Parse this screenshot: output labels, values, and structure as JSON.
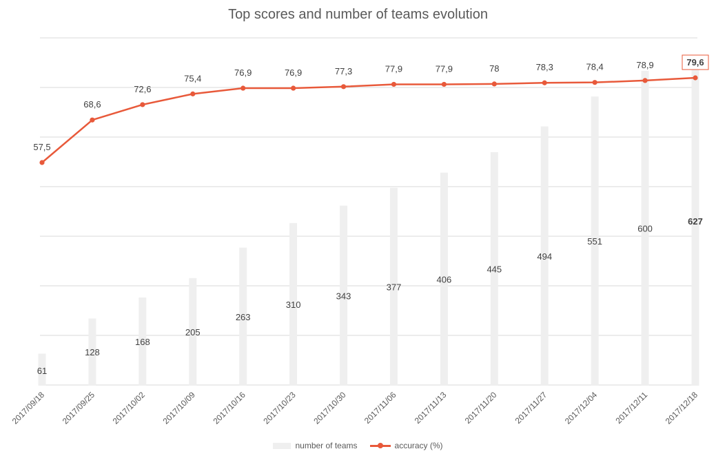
{
  "title": "Top scores and number of teams evolution",
  "chart_data": {
    "type": "bar+line",
    "categories": [
      "2017/09/18",
      "2017/09/25",
      "2017/10/02",
      "2017/10/09",
      "2017/10/16",
      "2017/10/23",
      "2017/10/30",
      "2017/11/06",
      "2017/11/13",
      "2017/11/20",
      "2017/11/27",
      "2017/12/04",
      "2017/12/11",
      "2017/12/18"
    ],
    "series": [
      {
        "name": "number of teams",
        "kind": "bar",
        "color": "#efefef",
        "values": [
          61,
          128,
          168,
          205,
          263,
          310,
          343,
          377,
          406,
          445,
          494,
          551,
          600,
          627
        ],
        "labels": [
          "61",
          "128",
          "168",
          "205",
          "263",
          "310",
          "343",
          "377",
          "406",
          "445",
          "494",
          "551",
          "600",
          "627"
        ]
      },
      {
        "name": "accuracy (%)",
        "kind": "line",
        "color": "#e8593a",
        "values": [
          57.5,
          68.6,
          72.6,
          75.4,
          76.9,
          76.9,
          77.3,
          77.9,
          77.9,
          78,
          78.3,
          78.4,
          78.9,
          79.6
        ],
        "labels": [
          "57,5",
          "68,6",
          "72,6",
          "75,4",
          "76,9",
          "76,9",
          "77,3",
          "77,9",
          "77,9",
          "78",
          "78,3",
          "78,4",
          "78,9",
          "79,6"
        ]
      }
    ],
    "highlight_last": true,
    "grid": true,
    "legend": "bottom"
  }
}
